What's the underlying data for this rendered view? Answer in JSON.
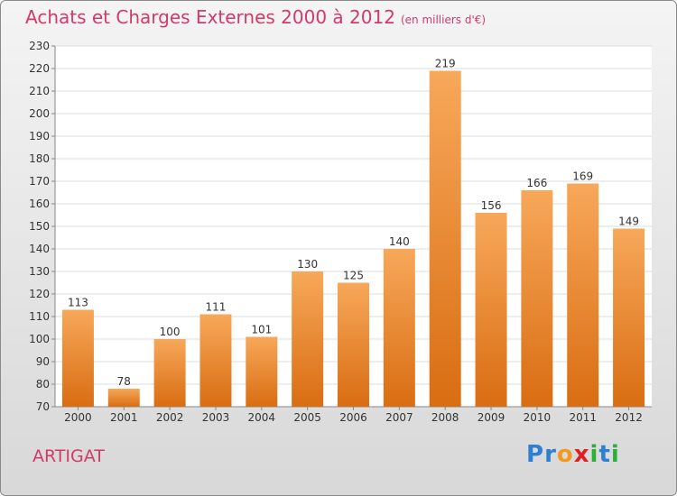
{
  "title": "Achats et Charges Externes 2000 à 2012",
  "unit": "(en milliers d'€)",
  "commune": "ARTIGAT",
  "logo": {
    "letters": [
      "P",
      "r",
      "o",
      "x",
      "i",
      "t",
      "i"
    ],
    "colors": [
      "#2d7fd3",
      "#2d7fd3",
      "#f29a1f",
      "#e02020",
      "#2eaf3a",
      "#2d7fd3",
      "#2eaf3a"
    ]
  },
  "colors": {
    "bar": "#f08a2c",
    "title": "#d23a6a"
  },
  "chart_data": {
    "type": "bar",
    "categories": [
      "2000",
      "2001",
      "2002",
      "2003",
      "2004",
      "2005",
      "2006",
      "2007",
      "2008",
      "2009",
      "2010",
      "2011",
      "2012"
    ],
    "values": [
      113,
      78,
      100,
      111,
      101,
      130,
      125,
      140,
      219,
      156,
      166,
      169,
      149
    ],
    "ylim": [
      70,
      230
    ],
    "yticks": [
      70,
      80,
      90,
      100,
      110,
      120,
      130,
      140,
      150,
      160,
      170,
      180,
      190,
      200,
      210,
      220,
      230
    ],
    "grid": true
  }
}
